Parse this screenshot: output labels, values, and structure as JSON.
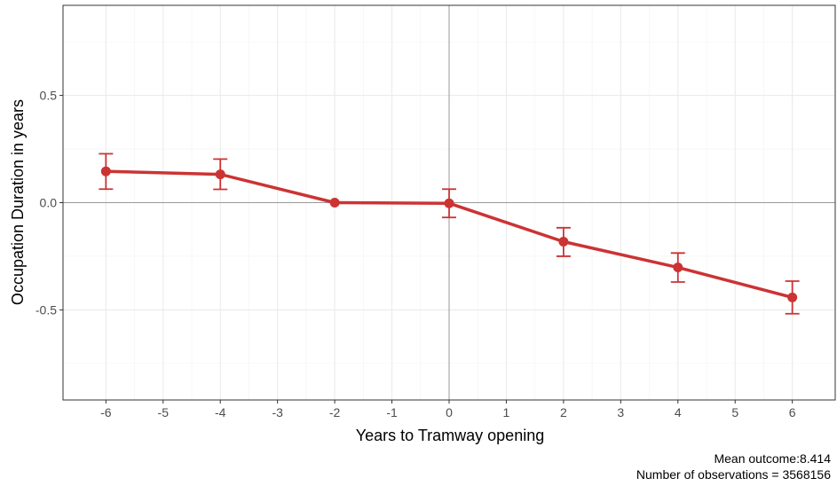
{
  "chart_data": {
    "type": "line",
    "xlabel": "Years to Tramway opening",
    "ylabel": "Occupation Duration in years",
    "xlim": [
      -6.75,
      6.75
    ],
    "ylim": [
      -0.92,
      0.92
    ],
    "x_ticks": [
      -6,
      -5,
      -4,
      -3,
      -2,
      -1,
      0,
      1,
      2,
      3,
      4,
      5,
      6
    ],
    "y_ticks": [
      0.5,
      0.0,
      -0.5
    ],
    "y_tick_labels": [
      "0.5",
      "0.0",
      "-0.5"
    ],
    "grid": true,
    "reference_lines": {
      "x": 0,
      "y": 0
    },
    "series": [
      {
        "color": "#cc3333",
        "x": [
          -6,
          -4,
          -2,
          0,
          2,
          4,
          6
        ],
        "y": [
          0.146,
          0.132,
          0.0,
          -0.003,
          -0.182,
          -0.302,
          -0.442
        ],
        "ci_low": [
          0.063,
          0.062,
          0.0,
          -0.069,
          -0.25,
          -0.37,
          -0.518
        ],
        "ci_high": [
          0.228,
          0.203,
          0.0,
          0.063,
          -0.117,
          -0.235,
          -0.366
        ]
      }
    ],
    "captions": [
      "Mean outcome:8.414",
      "Number of observations = 3568156"
    ]
  }
}
